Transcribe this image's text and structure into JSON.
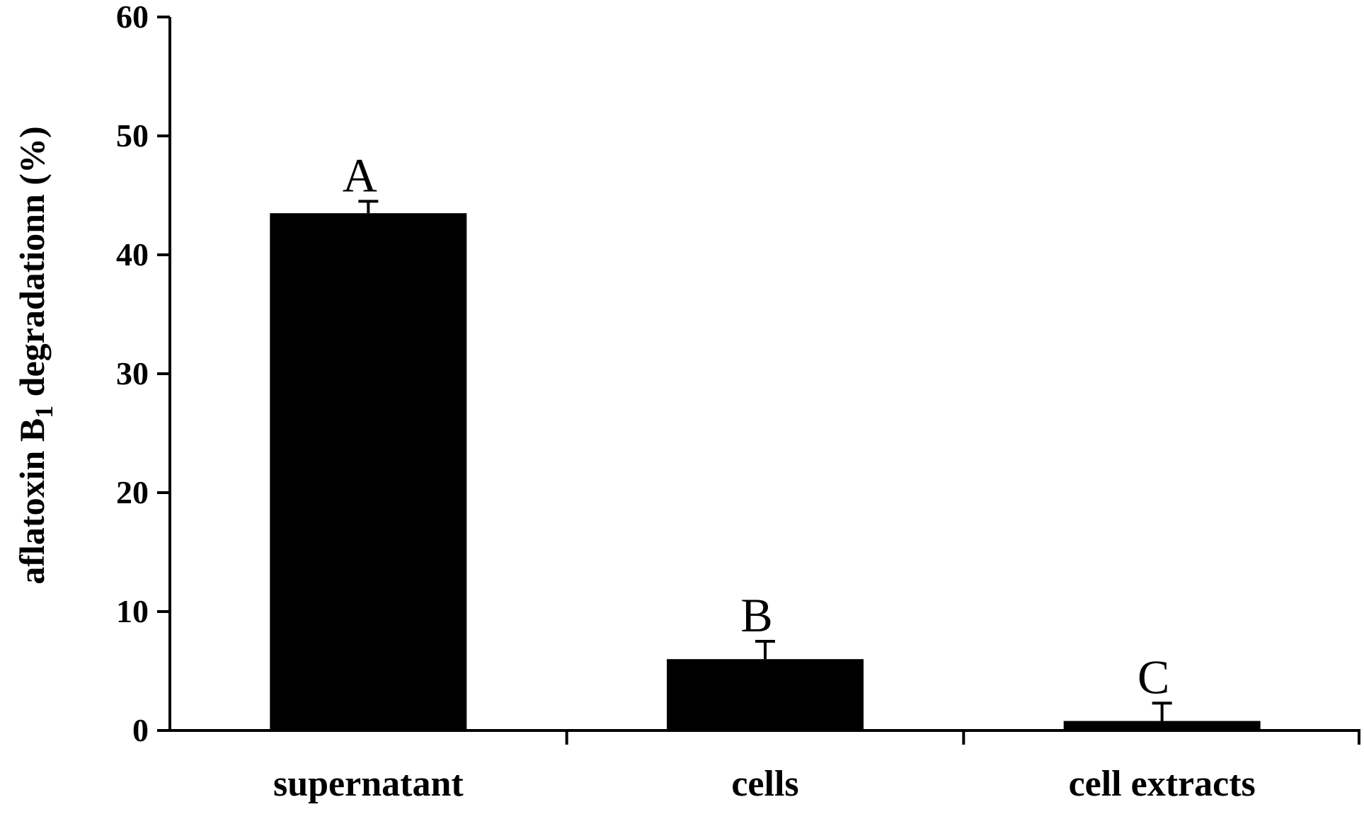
{
  "chart_data": {
    "type": "bar",
    "title": "",
    "categories": [
      "supernatant",
      "cells",
      "cell extracts"
    ],
    "values": [
      43.5,
      6.0,
      0.8
    ],
    "error": [
      1.0,
      1.5,
      1.5
    ],
    "letters": [
      "A",
      "B",
      "C"
    ],
    "ylim": [
      0,
      60
    ],
    "yticks": [
      0,
      10,
      20,
      30,
      40,
      50,
      60
    ],
    "ylabel": {
      "prefix": "aflatoxin B",
      "subscript": "1",
      "suffix": " degradationn  (%)"
    },
    "xlabel": "",
    "grid": false,
    "legend": "none",
    "bar_color": "#000000"
  }
}
